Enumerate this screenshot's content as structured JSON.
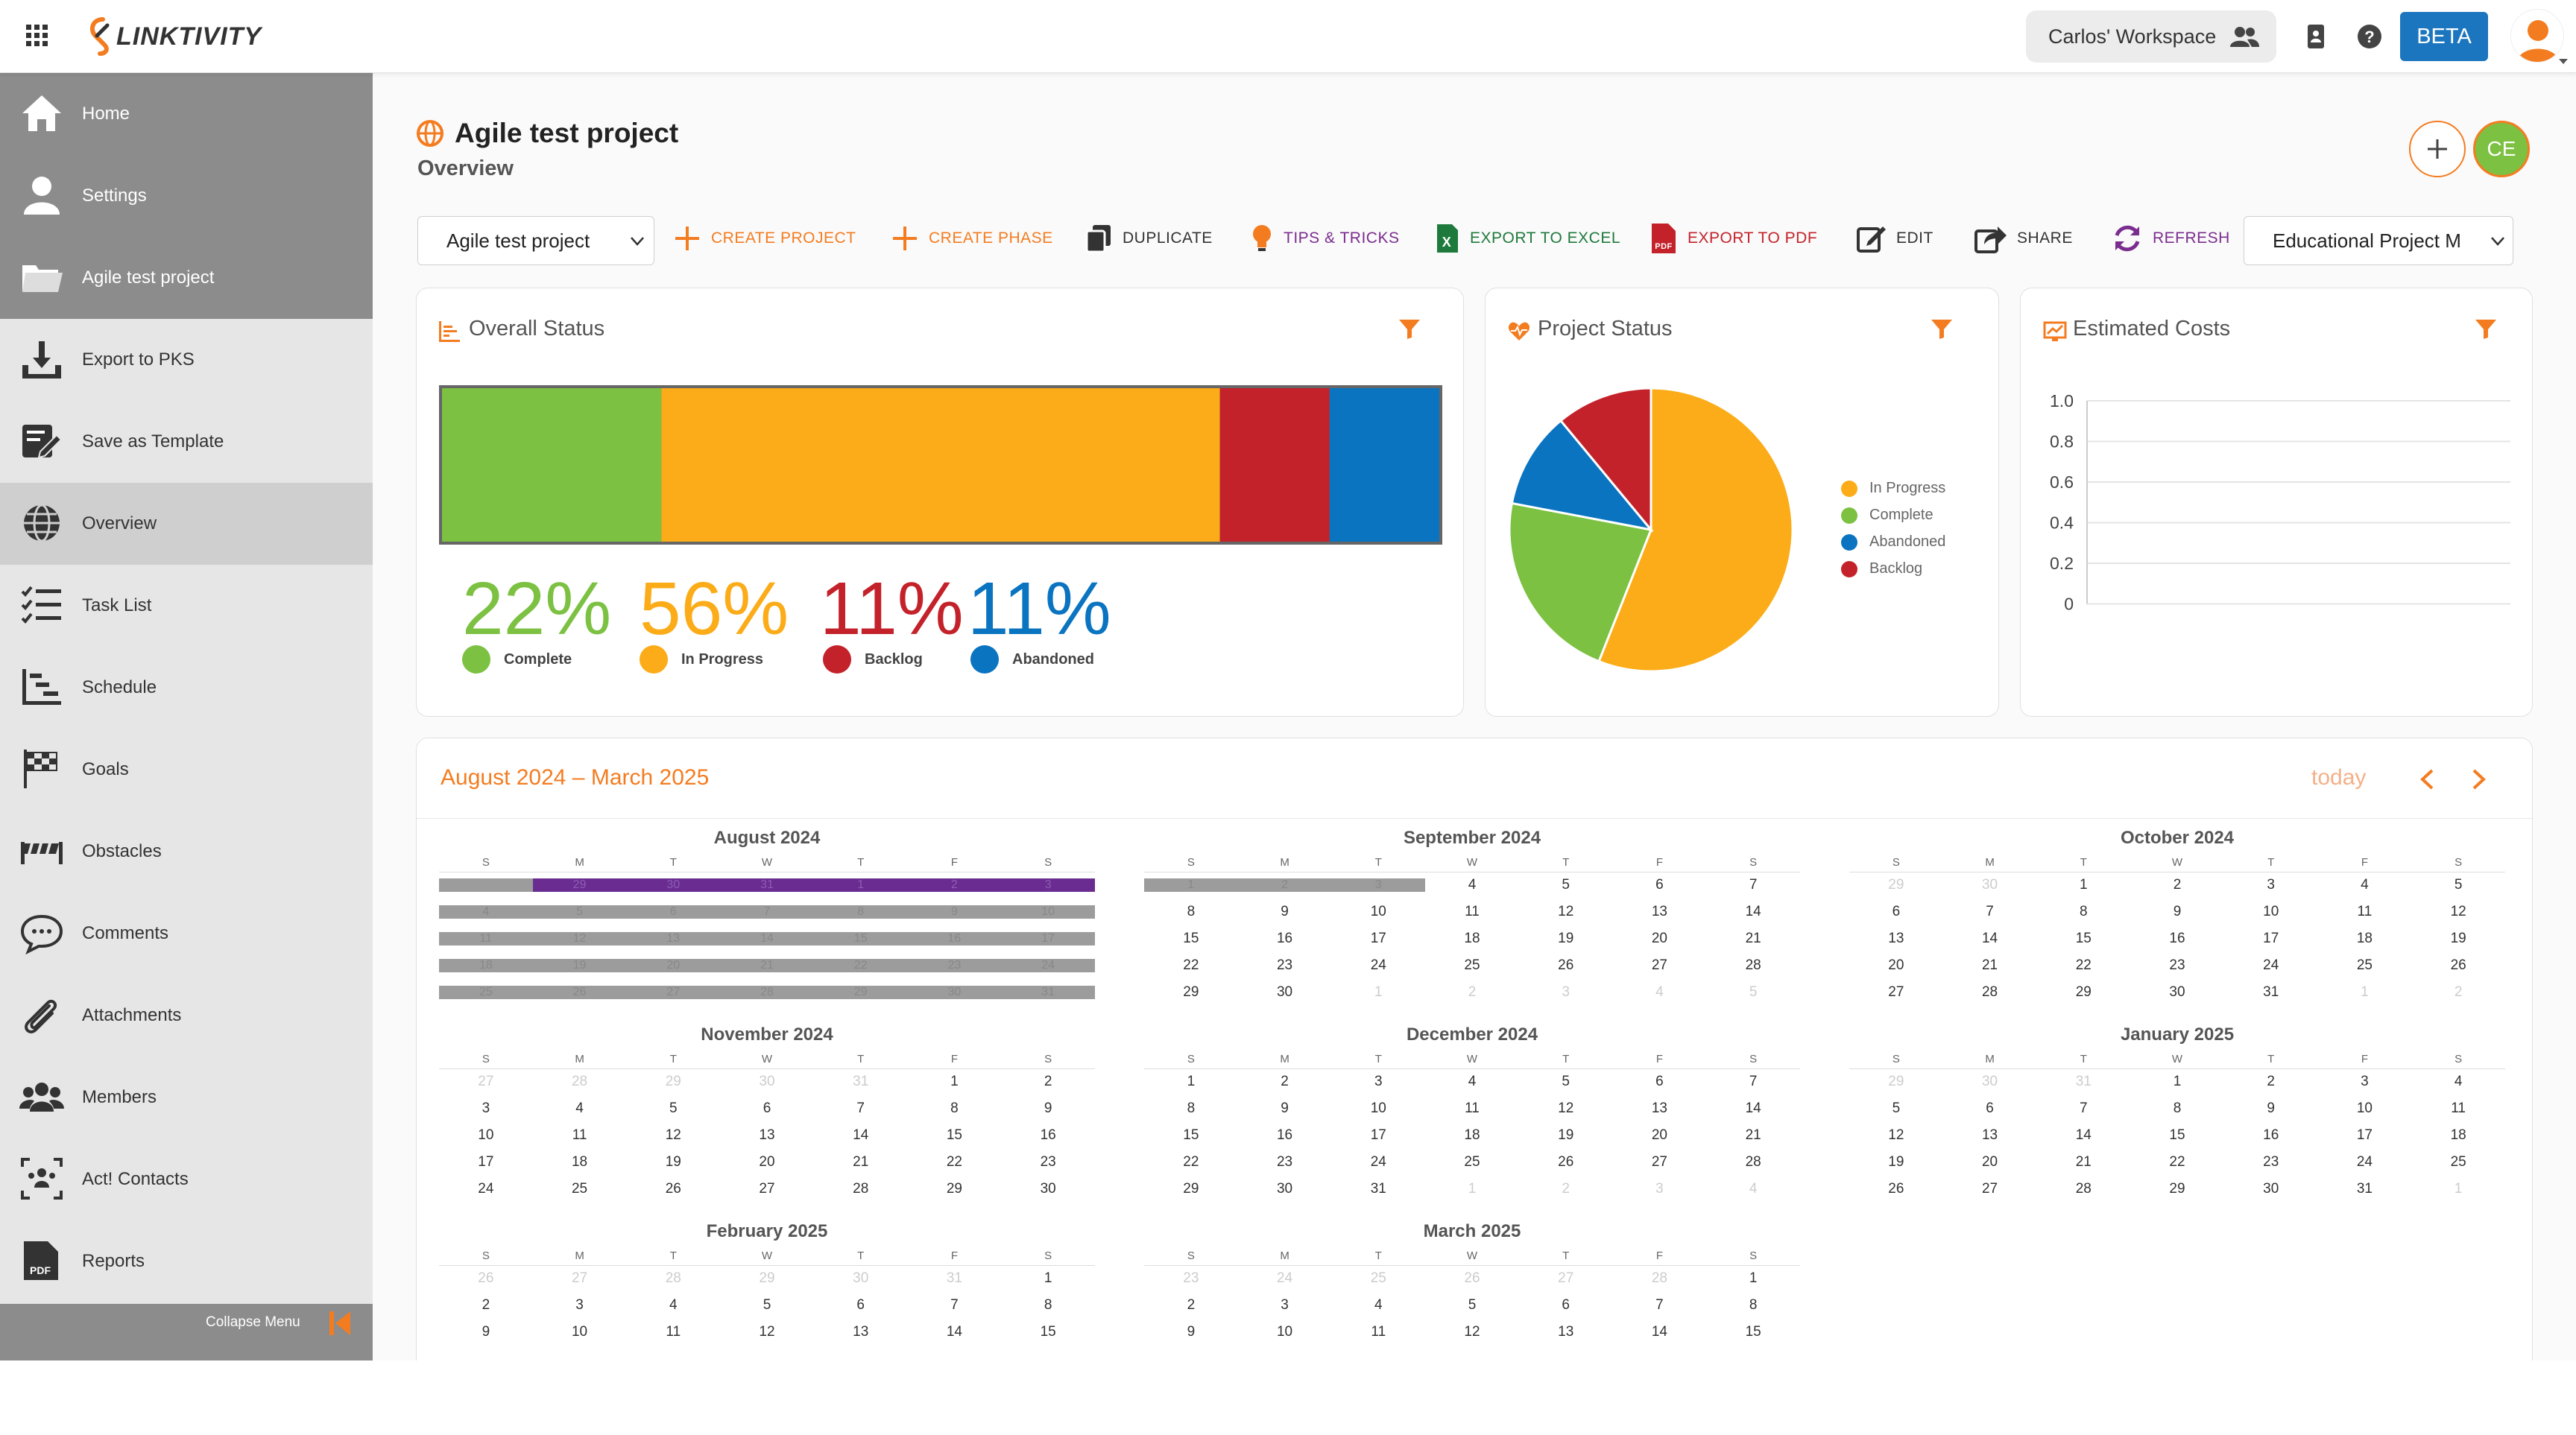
{
  "top": {
    "logo_text": "LINKTIVITY",
    "workspace": "Carlos' Workspace",
    "beta_label": "BETA"
  },
  "sidebar": {
    "items": [
      {
        "label": "Home",
        "icon": "home-icon"
      },
      {
        "label": "Settings",
        "icon": "user-icon"
      },
      {
        "label": "Agile test project",
        "icon": "folder-icon"
      },
      {
        "label": "Export to PKS",
        "icon": "download-icon"
      },
      {
        "label": "Save as Template",
        "icon": "template-icon"
      },
      {
        "label": "Overview",
        "icon": "globe-icon"
      },
      {
        "label": "Task List",
        "icon": "list-icon"
      },
      {
        "label": "Schedule",
        "icon": "schedule-icon"
      },
      {
        "label": "Goals",
        "icon": "flag-icon"
      },
      {
        "label": "Obstacles",
        "icon": "obstacle-icon"
      },
      {
        "label": "Comments",
        "icon": "comment-icon"
      },
      {
        "label": "Attachments",
        "icon": "paperclip-icon"
      },
      {
        "label": "Members",
        "icon": "members-icon"
      },
      {
        "label": "Act! Contacts",
        "icon": "contacts-icon"
      },
      {
        "label": "Reports",
        "icon": "pdf-icon"
      }
    ],
    "collapse_label": "Collapse Menu"
  },
  "header": {
    "title": "Agile test project",
    "subtitle": "Overview",
    "avatar_initials": "CE"
  },
  "toolbar": {
    "project_select": "Agile test project",
    "create_project": "CREATE PROJECT",
    "create_phase": "CREATE PHASE",
    "duplicate": "DUPLICATE",
    "tips": "TIPS & TRICKS",
    "export_excel": "EXPORT TO EXCEL",
    "export_pdf": "EXPORT TO PDF",
    "edit": "EDIT",
    "share": "SHARE",
    "refresh": "REFRESH",
    "template_select": "Educational Project M"
  },
  "colors": {
    "orange": "#f47c20",
    "complete": "#7cc142",
    "in_progress": "#fbac18",
    "backlog": "#c4222a",
    "abandoned": "#0a74c0",
    "purple": "#7b2d8f"
  },
  "overall_status": {
    "title": "Overall Status",
    "items": [
      {
        "pct": "22%",
        "label": "Complete",
        "value": 22
      },
      {
        "pct": "56%",
        "label": "In Progress",
        "value": 56
      },
      {
        "pct": "11%",
        "label": "Backlog",
        "value": 11
      },
      {
        "pct": "11%",
        "label": "Abandoned",
        "value": 11
      }
    ]
  },
  "project_status": {
    "title": "Project Status",
    "legend": [
      "In Progress",
      "Complete",
      "Abandoned",
      "Backlog"
    ]
  },
  "estimated_costs": {
    "title": "Estimated Costs",
    "ticks": [
      "1.0",
      "0.8",
      "0.6",
      "0.4",
      "0.2",
      "0"
    ]
  },
  "chart_data": [
    {
      "type": "bar",
      "title": "Overall Status",
      "categories": [
        "Complete",
        "In Progress",
        "Backlog",
        "Abandoned"
      ],
      "values": [
        22,
        56,
        11,
        11
      ]
    },
    {
      "type": "pie",
      "title": "Project Status",
      "categories": [
        "In Progress",
        "Complete",
        "Abandoned",
        "Backlog"
      ],
      "values": [
        56,
        22,
        11,
        11
      ]
    },
    {
      "type": "line",
      "title": "Estimated Costs",
      "ylim": [
        0,
        1.0
      ],
      "series": []
    }
  ],
  "calendar": {
    "range": "August 2024 – March 2025",
    "today": "today",
    "dow": [
      "S",
      "M",
      "T",
      "W",
      "T",
      "F",
      "S"
    ],
    "months": [
      {
        "title": "August 2024",
        "start": 4,
        "days": 31,
        "prev": 31
      },
      {
        "title": "September 2024",
        "start": 0,
        "days": 30,
        "prev": 31
      },
      {
        "title": "October 2024",
        "start": 2,
        "days": 31,
        "prev": 30
      },
      {
        "title": "November 2024",
        "start": 5,
        "days": 30,
        "prev": 31
      },
      {
        "title": "December 2024",
        "start": 0,
        "days": 31,
        "prev": 30
      },
      {
        "title": "January 2025",
        "start": 3,
        "days": 31,
        "prev": 31
      },
      {
        "title": "February 2025",
        "start": 6,
        "days": 28,
        "prev": 31,
        "rows": 3
      },
      {
        "title": "March 2025",
        "start": 6,
        "days": 31,
        "prev": 28,
        "rows": 3
      }
    ]
  }
}
